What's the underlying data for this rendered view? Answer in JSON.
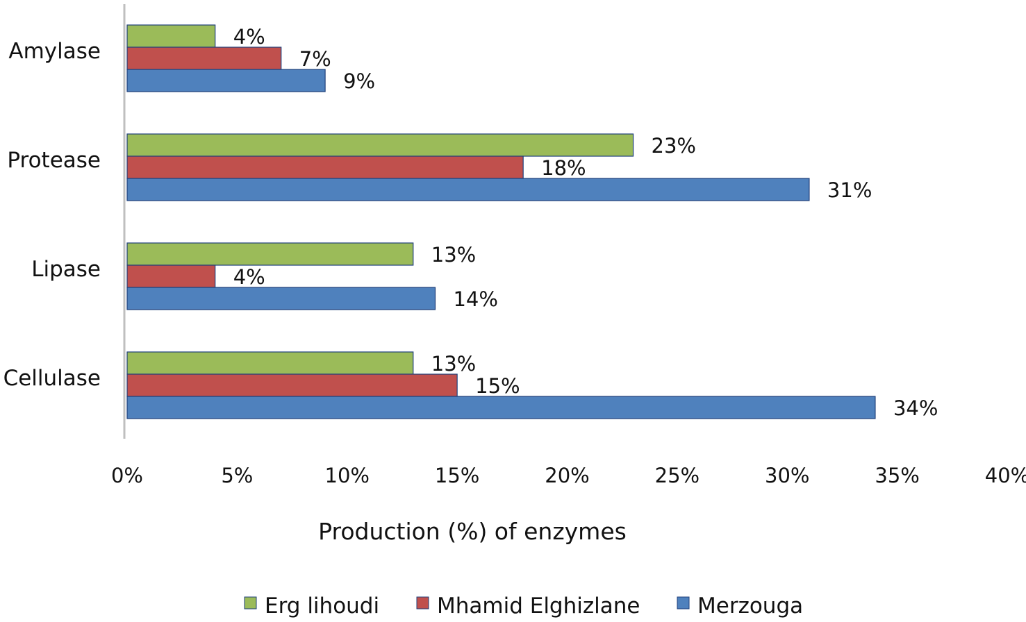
{
  "chart_data": {
    "type": "bar",
    "orientation": "horizontal",
    "categories": [
      "Amylase",
      "Protease",
      "Lipase",
      "Cellulase"
    ],
    "series": [
      {
        "name": "Erg lihoudi",
        "color": "#9bbb59",
        "values": [
          4,
          23,
          13,
          13
        ],
        "labels": [
          "4%",
          "23%",
          "13%",
          "13%"
        ]
      },
      {
        "name": "Mhamid Elghizlane",
        "color": "#c0504d",
        "values": [
          7,
          18,
          4,
          15
        ],
        "labels": [
          "7%",
          "18%",
          "4%",
          "15%"
        ]
      },
      {
        "name": "Merzouga",
        "color": "#4f81bd",
        "values": [
          9,
          31,
          14,
          34
        ],
        "labels": [
          "9%",
          "31%",
          "14%",
          "34%"
        ]
      }
    ],
    "xlabel": "Production (%) of enzymes",
    "ylabel": "",
    "xlim": [
      0,
      40
    ],
    "x_ticks": [
      0,
      5,
      10,
      15,
      20,
      25,
      30,
      35,
      40
    ],
    "x_tick_labels": [
      "0%",
      "5%",
      "10%",
      "15%",
      "20%",
      "25%",
      "30%",
      "35%",
      "40%"
    ],
    "grid": false,
    "legend_position": "bottom"
  }
}
